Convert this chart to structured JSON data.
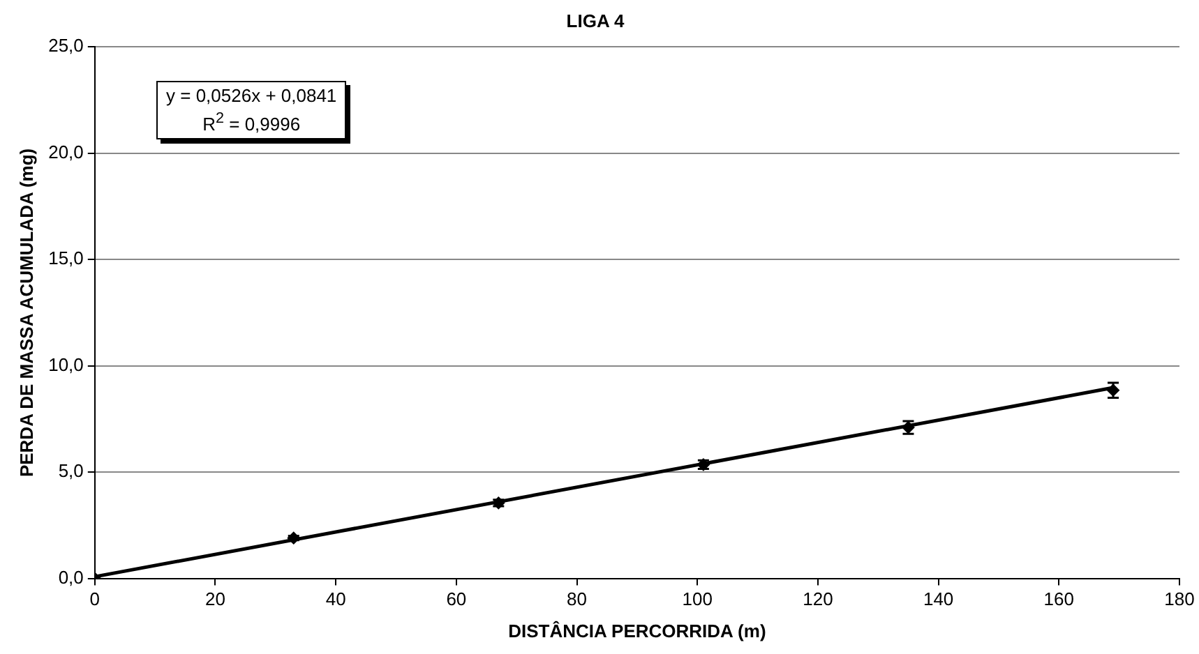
{
  "chart_data": {
    "type": "scatter",
    "title": "LIGA 4",
    "xlabel": "DISTÂNCIA PERCORRIDA (m)",
    "ylabel": "PERDA DE MASSA ACUMULADA (mg)",
    "series": [
      {
        "type": "scatter",
        "color": "#000000",
        "x": [
          0,
          33,
          67,
          101,
          135,
          169
        ],
        "values": [
          0,
          1.9,
          3.55,
          5.35,
          7.1,
          8.85
        ],
        "errors": [
          null,
          0.1,
          0.15,
          0.2,
          0.3,
          0.35
        ]
      },
      {
        "type": "line",
        "color": "#000000",
        "marker": "none",
        "x": [
          0,
          169
        ],
        "values": [
          0.08,
          8.97
        ]
      }
    ],
    "xlim": [
      0,
      180
    ],
    "xticks": [
      0,
      20,
      40,
      60,
      80,
      100,
      120,
      140,
      160,
      180
    ],
    "ylim": [
      0,
      25
    ],
    "yticks": [
      {
        "value": 0,
        "label": "0,0"
      },
      {
        "value": 5,
        "label": "5,0"
      },
      {
        "value": 10,
        "label": "10,0"
      },
      {
        "value": 15,
        "label": "15,0"
      },
      {
        "value": 20,
        "label": "20,0"
      },
      {
        "value": 25,
        "label": "25,0"
      }
    ],
    "grid": "y",
    "marker": "diamond",
    "legend": false,
    "annotations": [
      "y = 0,0526x + 0,0841\nR$^{2}$ = 0,9996"
    ]
  }
}
